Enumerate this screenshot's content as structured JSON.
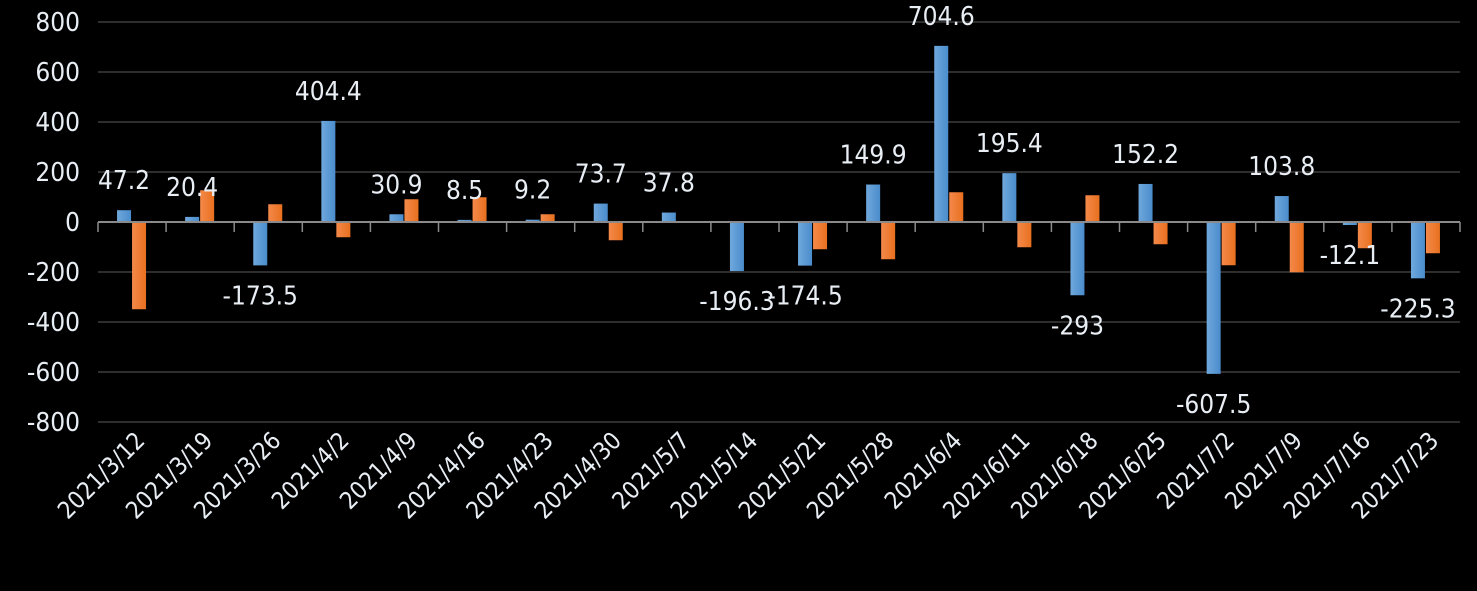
{
  "chart_data": {
    "type": "bar",
    "title": "",
    "xlabel": "",
    "ylabel": "",
    "ylim": [
      -800,
      800
    ],
    "yticks": [
      800,
      600,
      400,
      200,
      0,
      -200,
      -400,
      -600,
      -800
    ],
    "grid": true,
    "legend": "none",
    "categories": [
      "2021/3/12",
      "2021/3/19",
      "2021/3/26",
      "2021/4/2",
      "2021/4/9",
      "2021/4/16",
      "2021/4/23",
      "2021/4/30",
      "2021/5/7",
      "2021/5/14",
      "2021/5/21",
      "2021/5/28",
      "2021/6/4",
      "2021/6/11",
      "2021/6/18",
      "2021/6/25",
      "2021/7/2",
      "2021/7/9",
      "2021/7/16",
      "2021/7/23"
    ],
    "series": [
      {
        "color": "#5b9bd5",
        "data_labels": true,
        "values": [
          47.2,
          20.4,
          -173.5,
          404.4,
          30.9,
          8.5,
          9.2,
          73.7,
          37.8,
          -196.3,
          -174.5,
          149.9,
          704.6,
          195.4,
          -293,
          152.2,
          -607.5,
          103.8,
          -12.1,
          -225.3
        ]
      },
      {
        "color": "#ed7d31",
        "data_labels": false,
        "values": [
          -349,
          127,
          71,
          -61,
          91,
          99,
          31,
          -73,
          0,
          -2,
          -109,
          -149,
          119,
          -101,
          107,
          -89,
          -173,
          -201,
          -105,
          -125
        ]
      }
    ]
  }
}
